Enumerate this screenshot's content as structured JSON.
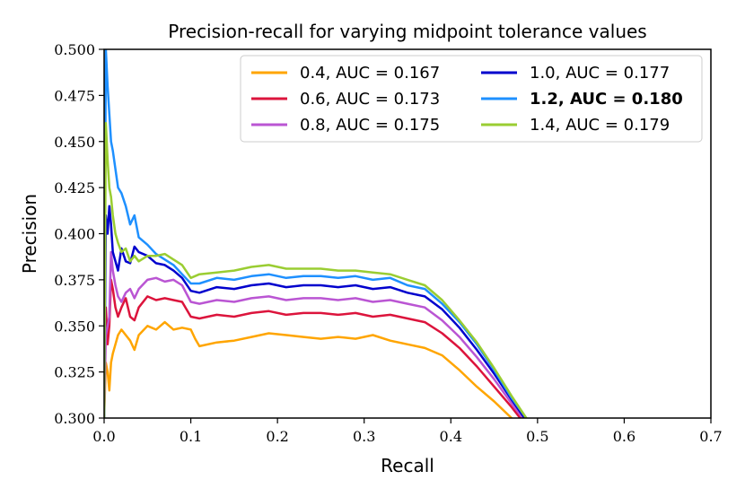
{
  "chart_data": {
    "type": "line",
    "title": "Precision-recall for varying midpoint tolerance values",
    "xlabel": "Recall",
    "ylabel": "Precision",
    "xlim": [
      0.0,
      0.7
    ],
    "ylim": [
      0.3,
      0.5
    ],
    "xticks": [
      0.0,
      0.1,
      0.2,
      0.3,
      0.4,
      0.5,
      0.6,
      0.7
    ],
    "xtick_labels": [
      "0.0",
      "0.1",
      "0.2",
      "0.3",
      "0.4",
      "0.5",
      "0.6",
      "0.7"
    ],
    "yticks": [
      0.3,
      0.325,
      0.35,
      0.375,
      0.4,
      0.425,
      0.45,
      0.475,
      0.5
    ],
    "ytick_labels": [
      "0.300",
      "0.325",
      "0.350",
      "0.375",
      "0.400",
      "0.425",
      "0.450",
      "0.475",
      "0.500"
    ],
    "grid": false,
    "legend_position": "top-right",
    "series": [
      {
        "name": "0.4, AUC = 0.167",
        "color": "#ffa500",
        "bold": false,
        "x": [
          0.0,
          0.002,
          0.004,
          0.006,
          0.008,
          0.01,
          0.013,
          0.016,
          0.02,
          0.025,
          0.03,
          0.035,
          0.04,
          0.05,
          0.06,
          0.07,
          0.08,
          0.09,
          0.1,
          0.105,
          0.11,
          0.13,
          0.15,
          0.17,
          0.19,
          0.21,
          0.23,
          0.25,
          0.27,
          0.29,
          0.31,
          0.33,
          0.35,
          0.37,
          0.39,
          0.41,
          0.43,
          0.45,
          0.47
        ],
        "y": [
          0.3,
          0.33,
          0.325,
          0.315,
          0.33,
          0.335,
          0.34,
          0.345,
          0.348,
          0.345,
          0.342,
          0.337,
          0.345,
          0.35,
          0.348,
          0.352,
          0.348,
          0.349,
          0.348,
          0.343,
          0.339,
          0.341,
          0.342,
          0.344,
          0.346,
          0.345,
          0.344,
          0.343,
          0.344,
          0.343,
          0.345,
          0.342,
          0.34,
          0.338,
          0.334,
          0.326,
          0.317,
          0.309,
          0.3
        ]
      },
      {
        "name": "0.6, AUC = 0.173",
        "color": "#dc143c",
        "bold": false,
        "x": [
          0.0,
          0.002,
          0.004,
          0.006,
          0.008,
          0.01,
          0.013,
          0.016,
          0.02,
          0.025,
          0.03,
          0.035,
          0.04,
          0.05,
          0.06,
          0.07,
          0.08,
          0.09,
          0.1,
          0.11,
          0.13,
          0.15,
          0.17,
          0.19,
          0.21,
          0.23,
          0.25,
          0.27,
          0.29,
          0.31,
          0.33,
          0.35,
          0.37,
          0.39,
          0.41,
          0.43,
          0.45,
          0.47,
          0.48
        ],
        "y": [
          0.3,
          0.36,
          0.34,
          0.35,
          0.375,
          0.37,
          0.36,
          0.355,
          0.36,
          0.365,
          0.355,
          0.353,
          0.36,
          0.366,
          0.364,
          0.365,
          0.364,
          0.363,
          0.355,
          0.354,
          0.356,
          0.355,
          0.357,
          0.358,
          0.356,
          0.357,
          0.357,
          0.356,
          0.357,
          0.355,
          0.356,
          0.354,
          0.352,
          0.346,
          0.338,
          0.328,
          0.317,
          0.306,
          0.3
        ]
      },
      {
        "name": "0.8, AUC = 0.175",
        "color": "#ba55d3",
        "bold": false,
        "x": [
          0.0,
          0.002,
          0.004,
          0.006,
          0.008,
          0.01,
          0.013,
          0.016,
          0.02,
          0.025,
          0.03,
          0.035,
          0.04,
          0.05,
          0.06,
          0.07,
          0.08,
          0.09,
          0.1,
          0.11,
          0.13,
          0.15,
          0.17,
          0.19,
          0.21,
          0.23,
          0.25,
          0.27,
          0.29,
          0.31,
          0.33,
          0.35,
          0.37,
          0.39,
          0.41,
          0.43,
          0.45,
          0.47,
          0.483
        ],
        "y": [
          0.3,
          0.345,
          0.35,
          0.355,
          0.39,
          0.38,
          0.372,
          0.366,
          0.363,
          0.368,
          0.37,
          0.365,
          0.37,
          0.375,
          0.376,
          0.374,
          0.375,
          0.372,
          0.363,
          0.362,
          0.364,
          0.363,
          0.365,
          0.366,
          0.364,
          0.365,
          0.365,
          0.364,
          0.365,
          0.363,
          0.364,
          0.362,
          0.36,
          0.353,
          0.344,
          0.333,
          0.321,
          0.308,
          0.3
        ]
      },
      {
        "name": "1.0, AUC = 0.177",
        "color": "#0000cd",
        "bold": false,
        "x": [
          0.0,
          0.002,
          0.004,
          0.006,
          0.008,
          0.01,
          0.013,
          0.016,
          0.02,
          0.025,
          0.03,
          0.035,
          0.04,
          0.05,
          0.06,
          0.07,
          0.08,
          0.09,
          0.1,
          0.11,
          0.13,
          0.15,
          0.17,
          0.19,
          0.21,
          0.23,
          0.25,
          0.27,
          0.29,
          0.31,
          0.33,
          0.35,
          0.37,
          0.39,
          0.41,
          0.43,
          0.45,
          0.47,
          0.485
        ],
        "y": [
          0.3,
          0.41,
          0.4,
          0.415,
          0.405,
          0.39,
          0.385,
          0.38,
          0.392,
          0.385,
          0.384,
          0.393,
          0.39,
          0.388,
          0.384,
          0.383,
          0.38,
          0.376,
          0.369,
          0.368,
          0.371,
          0.37,
          0.372,
          0.373,
          0.371,
          0.372,
          0.372,
          0.371,
          0.372,
          0.37,
          0.371,
          0.368,
          0.366,
          0.359,
          0.349,
          0.337,
          0.324,
          0.31,
          0.3
        ]
      },
      {
        "name": "1.2, AUC = 0.180",
        "color": "#1e90ff",
        "bold": true,
        "x": [
          0.0,
          0.002,
          0.004,
          0.006,
          0.008,
          0.01,
          0.013,
          0.016,
          0.02,
          0.025,
          0.03,
          0.035,
          0.04,
          0.05,
          0.06,
          0.07,
          0.08,
          0.09,
          0.1,
          0.11,
          0.13,
          0.15,
          0.17,
          0.19,
          0.21,
          0.23,
          0.25,
          0.27,
          0.29,
          0.31,
          0.33,
          0.35,
          0.37,
          0.39,
          0.41,
          0.43,
          0.45,
          0.47,
          0.487
        ],
        "y": [
          0.3,
          0.5,
          0.48,
          0.465,
          0.45,
          0.445,
          0.435,
          0.425,
          0.422,
          0.415,
          0.405,
          0.41,
          0.398,
          0.394,
          0.389,
          0.386,
          0.383,
          0.378,
          0.373,
          0.373,
          0.376,
          0.375,
          0.377,
          0.378,
          0.376,
          0.377,
          0.377,
          0.376,
          0.377,
          0.375,
          0.376,
          0.372,
          0.37,
          0.362,
          0.352,
          0.34,
          0.326,
          0.311,
          0.3
        ]
      },
      {
        "name": "1.4, AUC = 0.179",
        "color": "#9acd32",
        "bold": false,
        "x": [
          0.0,
          0.002,
          0.004,
          0.006,
          0.008,
          0.01,
          0.013,
          0.016,
          0.02,
          0.025,
          0.03,
          0.035,
          0.04,
          0.05,
          0.06,
          0.07,
          0.08,
          0.09,
          0.1,
          0.11,
          0.13,
          0.15,
          0.17,
          0.19,
          0.21,
          0.23,
          0.25,
          0.27,
          0.29,
          0.31,
          0.33,
          0.35,
          0.37,
          0.39,
          0.41,
          0.43,
          0.45,
          0.47,
          0.487
        ],
        "y": [
          0.3,
          0.46,
          0.44,
          0.425,
          0.42,
          0.41,
          0.4,
          0.395,
          0.39,
          0.392,
          0.385,
          0.388,
          0.385,
          0.388,
          0.388,
          0.389,
          0.386,
          0.383,
          0.376,
          0.378,
          0.379,
          0.38,
          0.382,
          0.383,
          0.381,
          0.381,
          0.381,
          0.38,
          0.38,
          0.379,
          0.378,
          0.375,
          0.372,
          0.364,
          0.353,
          0.341,
          0.327,
          0.312,
          0.3
        ]
      }
    ]
  }
}
